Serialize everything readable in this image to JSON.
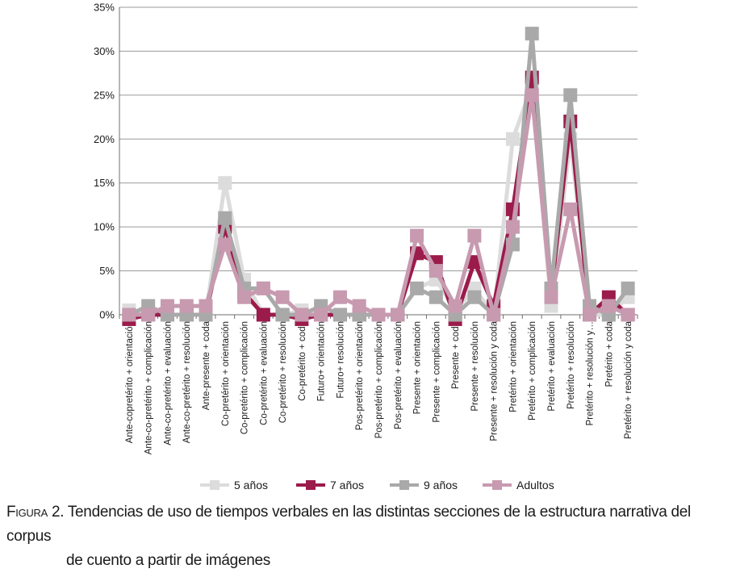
{
  "chart_data": {
    "type": "line",
    "title": "",
    "xlabel": "",
    "ylabel": "",
    "ylim": [
      0,
      35
    ],
    "yticks": [
      "0%",
      "5%",
      "10%",
      "15%",
      "20%",
      "25%",
      "30%",
      "35%"
    ],
    "grid": "horizontal",
    "legend_position": "bottom",
    "categories": [
      "Ante-copretérito + orientación",
      "Ante-co-pretérito + complicación",
      "Ante-co-pretérito + evaluación",
      "Ante-co-pretérito + resolución",
      "Ante-presente + coda",
      "Co-pretérito + orientación",
      "Co-pretérito + complicación",
      "Co-pretérito + evaluación",
      "Co-pretérito + resolución",
      "Co-pretérito + coda",
      "Futuro+ orientación",
      "Futuro+ resolución",
      "Pos-pretérito + orientación",
      "Pos-pretérito + complicación",
      "Pos-pretérito + evaluación",
      "Presente + orientación",
      "Presente + complicación",
      "Presente + coda",
      "Presente + resolución",
      "Presente + resolución y coda",
      "Pretérito + orientación",
      "Pretérito + complicación",
      "Pretérito + evaluación",
      "Pretérito + resolución",
      "Pretérito + resolución y…",
      "Pretérito + coda",
      "Pretérito + resolución y coda"
    ],
    "series": [
      {
        "name": "5 años",
        "color": "#dcdcdc",
        "values": [
          0.5,
          0,
          0,
          0,
          0,
          15,
          4,
          0,
          0,
          0.5,
          0,
          0,
          0,
          0,
          0,
          3,
          4,
          0.5,
          3,
          0,
          20,
          26,
          1,
          20,
          0,
          0,
          2
        ]
      },
      {
        "name": "7 años",
        "color": "#9b1b4b",
        "values": [
          -0.5,
          0,
          0,
          0,
          0,
          10,
          2.5,
          0,
          0,
          -0.5,
          0,
          0,
          0,
          0,
          0,
          7,
          6,
          -0.5,
          6,
          1,
          12,
          27,
          2.5,
          22,
          0,
          2,
          0
        ]
      },
      {
        "name": "9 años",
        "color": "#a9a9a9",
        "values": [
          0,
          1,
          0,
          0,
          0,
          11,
          3,
          3,
          0,
          0,
          1,
          0,
          0,
          0,
          0,
          3,
          2,
          0,
          2,
          0,
          8,
          32,
          3,
          25,
          1,
          0,
          3
        ]
      },
      {
        "name": "Adultos",
        "color": "#c79ab0",
        "values": [
          0,
          0,
          1,
          1,
          1,
          8,
          2,
          3,
          2,
          0,
          0,
          2,
          1,
          0,
          0,
          9,
          5,
          1,
          9,
          0,
          10,
          25,
          2,
          12,
          0,
          1,
          0
        ]
      }
    ]
  },
  "caption": {
    "label": "Figura 2.",
    "line1": " Tendencias de uso de tiempos verbales en las distintas secciones de la estructura narrativa del corpus",
    "line2": "de cuento a partir de imágenes"
  }
}
